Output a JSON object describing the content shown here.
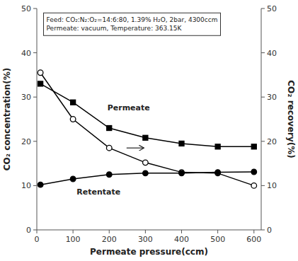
{
  "chart_data": {
    "type": "line",
    "title": "Feed: CO₂:N₂:O₂=14:6:80, 1.39% H₂O, 2bar, 4300ccm",
    "subtitle": "Permeate: vacuum, Temperature: 363.15K",
    "x_label": "Permeate pressure(ccm)",
    "y_label": "CO₂ concentration(%)",
    "y2_label": "CO₂ recovery(%)",
    "x": [
      10,
      100,
      200,
      300,
      400,
      500,
      600
    ],
    "xlim": [
      0,
      620
    ],
    "xticks": [
      0,
      100,
      200,
      300,
      400,
      500,
      600
    ],
    "ylim": [
      0,
      50
    ],
    "yticks": [
      0,
      10,
      20,
      30,
      40,
      50
    ],
    "y2lim": [
      0,
      50
    ],
    "y2ticks": [
      0,
      10,
      20,
      30,
      40,
      50
    ],
    "grid": false,
    "series": [
      {
        "values": [
          35.5,
          25.0,
          18.5,
          15.2,
          13.0,
          12.8,
          10.0
        ],
        "color": "black",
        "marker": "open-circle",
        "line_style": "solid"
      },
      {
        "values": [
          10.2,
          11.5,
          12.5,
          12.8,
          12.8,
          13.0,
          13.1
        ],
        "color": "black",
        "marker": "circle",
        "line_style": "solid"
      },
      {
        "values": [
          33.0,
          28.8,
          23.0,
          20.8,
          19.5,
          18.8,
          18.8
        ],
        "color": "black",
        "marker": "square",
        "line_style": "solid",
        "axis": "y2"
      }
    ],
    "annotations": [
      {
        "text": "Permeate",
        "x": 195,
        "y": 26.5
      },
      {
        "text": "Retentate",
        "x": 110,
        "y": 9.2
      }
    ],
    "arrow": {
      "from": [
        248,
        18.5
      ],
      "to": [
        296,
        18.5
      ]
    }
  }
}
